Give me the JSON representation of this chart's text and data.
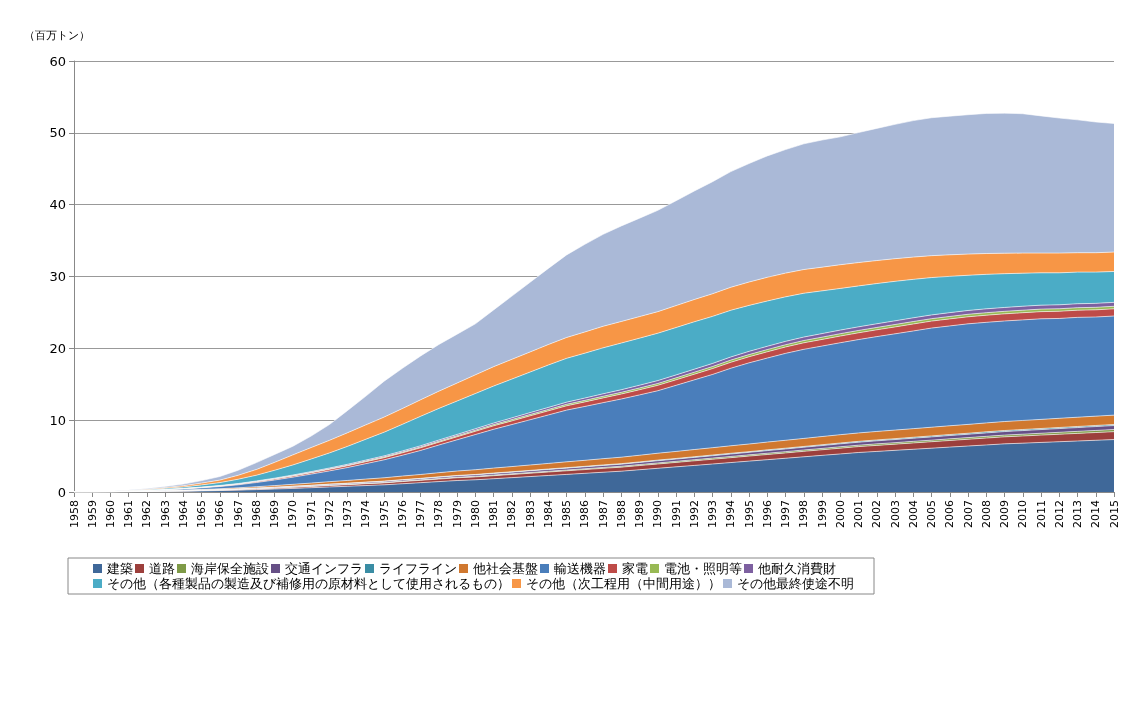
{
  "chart_data": {
    "type": "area",
    "stacked": true,
    "ylabel": "（百万トン）",
    "ylim": [
      0,
      60
    ],
    "yticks": [
      0,
      10,
      20,
      30,
      40,
      50,
      60
    ],
    "grid": "y",
    "legend": "bottom",
    "marker": "none",
    "categories": [
      "1958",
      "1959",
      "1960",
      "1961",
      "1962",
      "1963",
      "1964",
      "1965",
      "1966",
      "1967",
      "1968",
      "1969",
      "1970",
      "1971",
      "1972",
      "1973",
      "1974",
      "1975",
      "1976",
      "1977",
      "1978",
      "1979",
      "1980",
      "1981",
      "1982",
      "1983",
      "1984",
      "1985",
      "1986",
      "1987",
      "1988",
      "1989",
      "1990",
      "1991",
      "1992",
      "1993",
      "1994",
      "1995",
      "1996",
      "1997",
      "1998",
      "1999",
      "2000",
      "2001",
      "2002",
      "2003",
      "2004",
      "2005",
      "2006",
      "2007",
      "2008",
      "2009",
      "2010",
      "2011",
      "2012",
      "2013",
      "2014",
      "2015"
    ],
    "series": [
      {
        "name": "建築",
        "color": "#3f6899",
        "values": [
          0,
          0,
          0.01,
          0.03,
          0.05,
          0.08,
          0.11,
          0.15,
          0.2,
          0.26,
          0.33,
          0.41,
          0.5,
          0.6,
          0.7,
          0.8,
          0.9,
          1.0,
          1.15,
          1.3,
          1.45,
          1.6,
          1.7,
          1.85,
          2.0,
          2.15,
          2.3,
          2.45,
          2.6,
          2.75,
          2.9,
          3.1,
          3.3,
          3.5,
          3.7,
          3.9,
          4.1,
          4.3,
          4.5,
          4.7,
          4.9,
          5.1,
          5.3,
          5.5,
          5.65,
          5.8,
          5.95,
          6.1,
          6.25,
          6.4,
          6.55,
          6.7,
          6.8,
          6.9,
          7.0,
          7.1,
          7.2,
          7.3
        ]
      },
      {
        "name": "道路",
        "color": "#9c3f3c",
        "values": [
          0,
          0,
          0,
          0.01,
          0.02,
          0.03,
          0.04,
          0.05,
          0.06,
          0.08,
          0.1,
          0.12,
          0.15,
          0.17,
          0.2,
          0.22,
          0.25,
          0.27,
          0.3,
          0.32,
          0.35,
          0.38,
          0.4,
          0.42,
          0.44,
          0.46,
          0.48,
          0.5,
          0.52,
          0.54,
          0.56,
          0.58,
          0.6,
          0.62,
          0.64,
          0.66,
          0.68,
          0.7,
          0.72,
          0.74,
          0.76,
          0.78,
          0.8,
          0.82,
          0.84,
          0.86,
          0.88,
          0.9,
          0.92,
          0.94,
          0.96,
          0.98,
          1.0,
          1.02,
          1.04,
          1.06,
          1.08,
          1.1
        ]
      },
      {
        "name": "海岸保全施設",
        "color": "#7e9a47",
        "values": [
          0,
          0,
          0,
          0,
          0.01,
          0.01,
          0.01,
          0.02,
          0.02,
          0.02,
          0.03,
          0.03,
          0.04,
          0.04,
          0.05,
          0.05,
          0.06,
          0.06,
          0.07,
          0.07,
          0.08,
          0.08,
          0.09,
          0.1,
          0.1,
          0.11,
          0.11,
          0.12,
          0.12,
          0.13,
          0.13,
          0.14,
          0.15,
          0.15,
          0.16,
          0.16,
          0.17,
          0.17,
          0.18,
          0.18,
          0.19,
          0.19,
          0.2,
          0.2,
          0.21,
          0.21,
          0.22,
          0.22,
          0.23,
          0.23,
          0.24,
          0.24,
          0.25,
          0.26,
          0.27,
          0.28,
          0.29,
          0.3
        ]
      },
      {
        "name": "交通インフラ",
        "color": "#664f86",
        "values": [
          0,
          0,
          0,
          0.01,
          0.02,
          0.03,
          0.04,
          0.05,
          0.06,
          0.07,
          0.08,
          0.09,
          0.1,
          0.11,
          0.12,
          0.13,
          0.14,
          0.15,
          0.16,
          0.17,
          0.18,
          0.19,
          0.2,
          0.21,
          0.22,
          0.23,
          0.24,
          0.25,
          0.26,
          0.27,
          0.28,
          0.29,
          0.3,
          0.31,
          0.32,
          0.33,
          0.34,
          0.35,
          0.36,
          0.37,
          0.38,
          0.39,
          0.4,
          0.41,
          0.42,
          0.43,
          0.44,
          0.45,
          0.46,
          0.47,
          0.48,
          0.49,
          0.5,
          0.51,
          0.52,
          0.53,
          0.54,
          0.55
        ]
      },
      {
        "name": "ライフライン",
        "color": "#3a8da4",
        "values": [
          0,
          0,
          0,
          0,
          0,
          0.01,
          0.01,
          0.01,
          0.01,
          0.01,
          0.02,
          0.02,
          0.02,
          0.02,
          0.03,
          0.03,
          0.03,
          0.04,
          0.04,
          0.04,
          0.05,
          0.05,
          0.05,
          0.06,
          0.06,
          0.06,
          0.07,
          0.07,
          0.07,
          0.08,
          0.08,
          0.08,
          0.09,
          0.09,
          0.09,
          0.1,
          0.1,
          0.1,
          0.11,
          0.11,
          0.11,
          0.12,
          0.12,
          0.12,
          0.13,
          0.13,
          0.13,
          0.14,
          0.14,
          0.14,
          0.15,
          0.15,
          0.15,
          0.15,
          0.15,
          0.15,
          0.15,
          0.15
        ]
      },
      {
        "name": "他社会基盤",
        "color": "#d0782f",
        "values": [
          0,
          0,
          0,
          0.01,
          0.02,
          0.04,
          0.06,
          0.08,
          0.11,
          0.14,
          0.18,
          0.22,
          0.26,
          0.3,
          0.34,
          0.38,
          0.42,
          0.46,
          0.5,
          0.54,
          0.58,
          0.62,
          0.66,
          0.69,
          0.72,
          0.75,
          0.78,
          0.81,
          0.84,
          0.87,
          0.9,
          0.93,
          0.96,
          0.98,
          1.0,
          1.02,
          1.04,
          1.06,
          1.08,
          1.1,
          1.12,
          1.14,
          1.16,
          1.17,
          1.18,
          1.19,
          1.2,
          1.21,
          1.22,
          1.23,
          1.24,
          1.25,
          1.26,
          1.27,
          1.28,
          1.29,
          1.3,
          1.3
        ]
      },
      {
        "name": "輸送機器",
        "color": "#4a7ebb",
        "values": [
          0,
          0,
          0.01,
          0.03,
          0.06,
          0.1,
          0.15,
          0.22,
          0.3,
          0.42,
          0.58,
          0.78,
          1.0,
          1.25,
          1.5,
          1.8,
          2.15,
          2.5,
          2.9,
          3.35,
          3.85,
          4.35,
          4.9,
          5.4,
          5.85,
          6.3,
          6.75,
          7.2,
          7.5,
          7.8,
          8.1,
          8.4,
          8.7,
          9.2,
          9.7,
          10.2,
          10.8,
          11.3,
          11.7,
          12.1,
          12.4,
          12.6,
          12.8,
          13.0,
          13.2,
          13.4,
          13.6,
          13.8,
          13.9,
          14.0,
          14.0,
          14.0,
          14.0,
          14.0,
          13.9,
          13.9,
          13.8,
          13.8
        ]
      },
      {
        "name": "家電",
        "color": "#be4b48",
        "values": [
          0,
          0,
          0,
          0.01,
          0.02,
          0.03,
          0.04,
          0.05,
          0.07,
          0.09,
          0.11,
          0.13,
          0.15,
          0.18,
          0.21,
          0.24,
          0.27,
          0.3,
          0.33,
          0.36,
          0.39,
          0.42,
          0.45,
          0.48,
          0.51,
          0.54,
          0.57,
          0.6,
          0.63,
          0.66,
          0.69,
          0.72,
          0.75,
          0.77,
          0.79,
          0.81,
          0.83,
          0.85,
          0.87,
          0.89,
          0.91,
          0.92,
          0.93,
          0.94,
          0.95,
          0.96,
          0.97,
          0.97,
          0.98,
          0.98,
          0.99,
          0.99,
          1.0,
          1.0,
          1.0,
          1.0,
          1.0,
          1.0
        ]
      },
      {
        "name": "電池・照明等",
        "color": "#98b954",
        "values": [
          0,
          0,
          0,
          0,
          0.01,
          0.01,
          0.02,
          0.02,
          0.03,
          0.03,
          0.04,
          0.05,
          0.06,
          0.07,
          0.08,
          0.09,
          0.1,
          0.11,
          0.12,
          0.13,
          0.14,
          0.15,
          0.16,
          0.17,
          0.18,
          0.19,
          0.2,
          0.21,
          0.22,
          0.23,
          0.24,
          0.25,
          0.26,
          0.27,
          0.28,
          0.29,
          0.3,
          0.3,
          0.31,
          0.31,
          0.32,
          0.32,
          0.33,
          0.33,
          0.33,
          0.34,
          0.34,
          0.34,
          0.34,
          0.35,
          0.35,
          0.35,
          0.35,
          0.35,
          0.35,
          0.35,
          0.35,
          0.35
        ]
      },
      {
        "name": "他耐久消費財",
        "color": "#7d60a0",
        "values": [
          0,
          0,
          0,
          0.01,
          0.01,
          0.02,
          0.03,
          0.04,
          0.05,
          0.06,
          0.07,
          0.08,
          0.09,
          0.1,
          0.11,
          0.12,
          0.13,
          0.14,
          0.15,
          0.16,
          0.17,
          0.18,
          0.2,
          0.22,
          0.24,
          0.26,
          0.28,
          0.3,
          0.32,
          0.34,
          0.36,
          0.38,
          0.4,
          0.41,
          0.42,
          0.43,
          0.44,
          0.45,
          0.46,
          0.47,
          0.48,
          0.49,
          0.5,
          0.5,
          0.51,
          0.51,
          0.52,
          0.52,
          0.53,
          0.53,
          0.54,
          0.54,
          0.55,
          0.55,
          0.55,
          0.55,
          0.55,
          0.55
        ]
      },
      {
        "name": "その他（各種製品の製造及び補修用の原材料として使用されるもの）",
        "color": "#4bacc6",
        "values": [
          0,
          0.01,
          0.03,
          0.06,
          0.1,
          0.15,
          0.2,
          0.3,
          0.4,
          0.6,
          0.8,
          1.1,
          1.4,
          1.75,
          2.1,
          2.5,
          2.9,
          3.3,
          3.7,
          4.1,
          4.4,
          4.65,
          4.9,
          5.15,
          5.4,
          5.65,
          5.9,
          6.1,
          6.25,
          6.4,
          6.5,
          6.55,
          6.6,
          6.6,
          6.6,
          6.55,
          6.5,
          6.4,
          6.3,
          6.2,
          6.1,
          5.95,
          5.8,
          5.7,
          5.6,
          5.5,
          5.35,
          5.2,
          5.05,
          4.9,
          4.8,
          4.7,
          4.6,
          4.5,
          4.45,
          4.4,
          4.35,
          4.3
        ]
      },
      {
        "name": "その他（次工程用（中間用途））",
        "color": "#f79646",
        "values": [
          0,
          0,
          0.02,
          0.05,
          0.08,
          0.12,
          0.17,
          0.25,
          0.35,
          0.55,
          0.8,
          1.1,
          1.4,
          1.6,
          1.75,
          1.9,
          2.0,
          2.1,
          2.2,
          2.3,
          2.4,
          2.5,
          2.6,
          2.7,
          2.75,
          2.8,
          2.85,
          2.9,
          2.95,
          3.0,
          3.0,
          3.0,
          3.0,
          3.05,
          3.1,
          3.15,
          3.2,
          3.25,
          3.3,
          3.3,
          3.3,
          3.3,
          3.3,
          3.25,
          3.2,
          3.15,
          3.1,
          3.05,
          3.0,
          2.95,
          2.9,
          2.85,
          2.8,
          2.75,
          2.75,
          2.7,
          2.7,
          2.7
        ]
      },
      {
        "name": "その他最終使途不明",
        "color": "#aab9d7",
        "values": [
          0,
          0.01,
          0.03,
          0.06,
          0.1,
          0.15,
          0.22,
          0.35,
          0.5,
          0.7,
          0.95,
          1.1,
          1.2,
          1.6,
          2.2,
          3.1,
          4.0,
          5.0,
          5.6,
          6.1,
          6.5,
          6.8,
          7.1,
          7.9,
          8.8,
          9.7,
          10.6,
          11.5,
          12.2,
          12.8,
          13.3,
          13.7,
          14.1,
          14.6,
          15.1,
          15.6,
          16.1,
          16.5,
          16.9,
          17.2,
          17.5,
          17.7,
          17.8,
          18.1,
          18.4,
          18.7,
          19.0,
          19.2,
          19.3,
          19.4,
          19.5,
          19.5,
          19.4,
          19.1,
          18.8,
          18.5,
          18.2,
          17.9
        ]
      }
    ]
  }
}
